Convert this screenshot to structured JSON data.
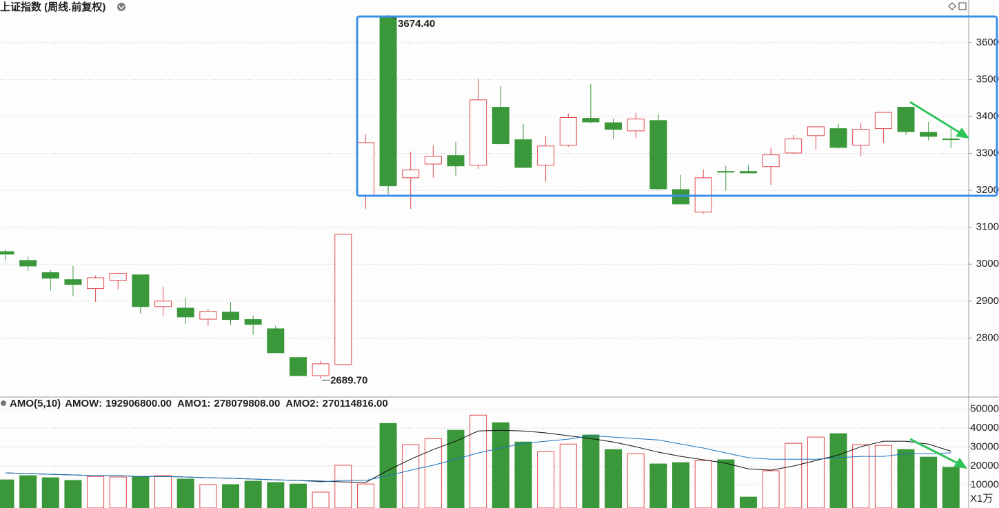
{
  "chart_data": [
    {
      "type": "candlestick",
      "title": "上证指数 (周线.前复权)",
      "up_color": "#e0474c",
      "down_color": "#3a973a",
      "open": [
        3034,
        3010,
        2977,
        2958,
        2934,
        2956,
        2971,
        2885,
        2881,
        2851,
        2870,
        2850,
        2825,
        2747,
        2698,
        2728,
        3187,
        3670,
        3234,
        3271,
        3294,
        3268,
        3425,
        3337,
        3268,
        3322,
        3395,
        3383,
        3361,
        3389,
        3202,
        3141,
        3251,
        3251,
        3264,
        3301,
        3348,
        3367,
        3322,
        3367,
        3425,
        3357,
        3339
      ],
      "high": [
        3040,
        3021,
        2984,
        2995,
        2969,
        2977,
        2971,
        2939,
        2909,
        2879,
        2898,
        2861,
        2833,
        2749,
        2738,
        3081,
        3352,
        3674.4,
        3305,
        3322,
        3331,
        3501,
        3482,
        3380,
        3348,
        3408,
        3488,
        3395,
        3410,
        3406,
        3242,
        3257,
        3266,
        3268,
        3316,
        3350,
        3372,
        3380,
        3382,
        3411,
        3425,
        3385,
        3367
      ],
      "low": [
        3010,
        2982,
        2928,
        2913,
        2898,
        2932,
        2866,
        2861,
        2838,
        2833,
        2835,
        2809,
        2760,
        2698,
        2689.7,
        2726,
        3150,
        3189,
        3150,
        3234,
        3240,
        3258,
        3326,
        3262,
        3223,
        3318,
        3382,
        3339,
        3342,
        3201,
        3163,
        3137,
        3199,
        3247,
        3215,
        3298,
        3309,
        3313,
        3292,
        3329,
        3350,
        3335,
        3314
      ],
      "close": [
        3027,
        2995,
        2962,
        2945,
        2963,
        2975,
        2885,
        2900,
        2857,
        2872,
        2850,
        2837,
        2760,
        2698,
        2730,
        3081,
        3329,
        3212,
        3255,
        3292,
        3266,
        3445,
        3326,
        3262,
        3320,
        3397,
        3385,
        3365,
        3393,
        3204,
        3163,
        3234,
        3249,
        3247,
        3296,
        3339,
        3372,
        3316,
        3365,
        3411,
        3359,
        3346,
        3339
      ],
      "max_label": "3674.40",
      "min_label": "2689.70",
      "ylim": [
        2642,
        3678
      ],
      "yticks": [
        2800,
        2900,
        3000,
        3100,
        3200,
        3300,
        3400,
        3500,
        3600
      ],
      "grid": true
    },
    {
      "type": "bar",
      "title": "AMO(5,10)",
      "unit": "X1万",
      "series": [
        {
          "name": "AMOW:",
          "header_value": "192906800.00",
          "color": "#3a973a",
          "values": [
            12700,
            14900,
            13800,
            12400,
            14500,
            14200,
            14200,
            14900,
            13100,
            10200,
            10200,
            12000,
            11300,
            10500,
            6200,
            20400,
            10500,
            42500,
            31300,
            34500,
            38900,
            46900,
            42900,
            32700,
            27600,
            31600,
            36400,
            28700,
            26500,
            21100,
            21800,
            22900,
            23300,
            3600,
            17500,
            32000,
            35300,
            37100,
            31300,
            30900,
            28700,
            24700,
            19290.68
          ]
        },
        {
          "name": "AMO1:",
          "header_value": "278079808.00",
          "color": "#111111",
          "values": [
            16400,
            16000,
            15600,
            15300,
            14900,
            14900,
            14500,
            14500,
            14200,
            13800,
            13500,
            13100,
            12700,
            12400,
            12000,
            11600,
            11300,
            17800,
            23600,
            28700,
            33100,
            38500,
            38900,
            38500,
            37500,
            36000,
            34500,
            32700,
            30200,
            27300,
            25100,
            23300,
            21500,
            18500,
            17800,
            20000,
            22900,
            25800,
            30200,
            33100,
            33100,
            31600,
            27807.98
          ]
        },
        {
          "name": "AMO2:",
          "header_value": "270114816.00",
          "color": "#1a74c0",
          "values": [
            16400,
            16000,
            15600,
            15300,
            14900,
            14900,
            14500,
            14500,
            14200,
            13800,
            13500,
            13100,
            12700,
            12400,
            11600,
            12400,
            12400,
            14900,
            17800,
            20400,
            23600,
            26900,
            29500,
            32000,
            33100,
            34200,
            36000,
            35300,
            34500,
            33800,
            31600,
            29500,
            26900,
            24400,
            23600,
            23600,
            23600,
            24400,
            25100,
            25100,
            26500,
            26500,
            27011.48
          ]
        }
      ],
      "ylim": [
        0,
        55000
      ],
      "yticks": [
        10000,
        20000,
        30000,
        40000,
        50000
      ],
      "grid": true
    }
  ]
}
